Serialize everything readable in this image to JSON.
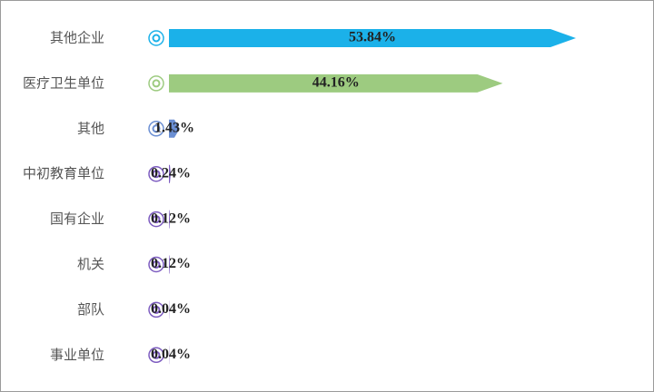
{
  "chart_data": {
    "type": "arrow-bar",
    "categories": [
      "其他企业",
      "医疗卫生单位",
      "其他",
      "中初教育单位",
      "国有企业",
      "机关",
      "部队",
      "事业单位"
    ],
    "values": [
      53.84,
      44.16,
      1.43,
      0.24,
      0.12,
      0.12,
      0.04,
      0.04
    ],
    "value_labels": [
      "53.84%",
      "44.16%",
      "1.43%",
      "0.24%",
      "0.12%",
      "0.12%",
      "0.04%",
      "0.04%"
    ],
    "colors": [
      "#1bb1e9",
      "#9dcb80",
      "#6b8fd3",
      "#7d5cc0",
      "#7d5cc0",
      "#7d5cc0",
      "#7d5cc0",
      "#7d5cc0"
    ]
  }
}
